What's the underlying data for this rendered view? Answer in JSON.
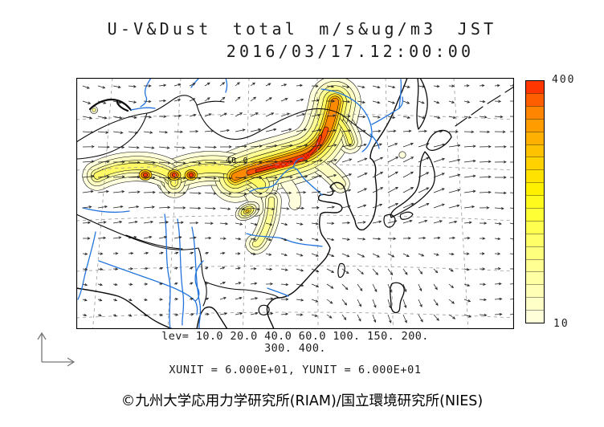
{
  "title": {
    "line1": "U-V&Dust total m/s&ug/m3 JST",
    "line2": "2016/03/17.12:00:00"
  },
  "map": {
    "contour_label": "40.0"
  },
  "colorbar": {
    "max_label": "400",
    "min_label": "10",
    "colors": [
      "#FFFFDA",
      "#FFFFC8",
      "#FFFFB6",
      "#FFFFA4",
      "#FFFF92",
      "#FFFF7E",
      "#FFFF68",
      "#FFFF50",
      "#FFFF36",
      "#FFFA1C",
      "#FFF000",
      "#FFE200",
      "#FFD200",
      "#FFC200",
      "#FFB000",
      "#FF9C00",
      "#FF8400",
      "#FF5E00",
      "#FF3600"
    ]
  },
  "legend": {
    "line1": "lev= 10.0 20.0 40.0 60.0 100. 150. 200.",
    "line2": "300. 400.",
    "units": "XUNIT = 6.000E+01, YUNIT = 6.000E+01"
  },
  "footer": {
    "copyright": "©九州大学応用力学研究所(RIAM)/国立環境研究所(NIES)"
  },
  "chart_data": {
    "type": "map-contour",
    "title": "U-V&Dust total m/s&ug/m3 JST",
    "timestamp": "2016/03/17.12:00:00",
    "variables": [
      "U-V wind vectors (m/s)",
      "Dust total (ug/m3)"
    ],
    "contour_levels": [
      10.0,
      20.0,
      40.0,
      60.0,
      100,
      150,
      200,
      300,
      400
    ],
    "colorbar_range": [
      10,
      400
    ],
    "vector_scale": {
      "xunit": "6.000E+01",
      "yunit": "6.000E+01"
    },
    "legend_position": "right"
  }
}
